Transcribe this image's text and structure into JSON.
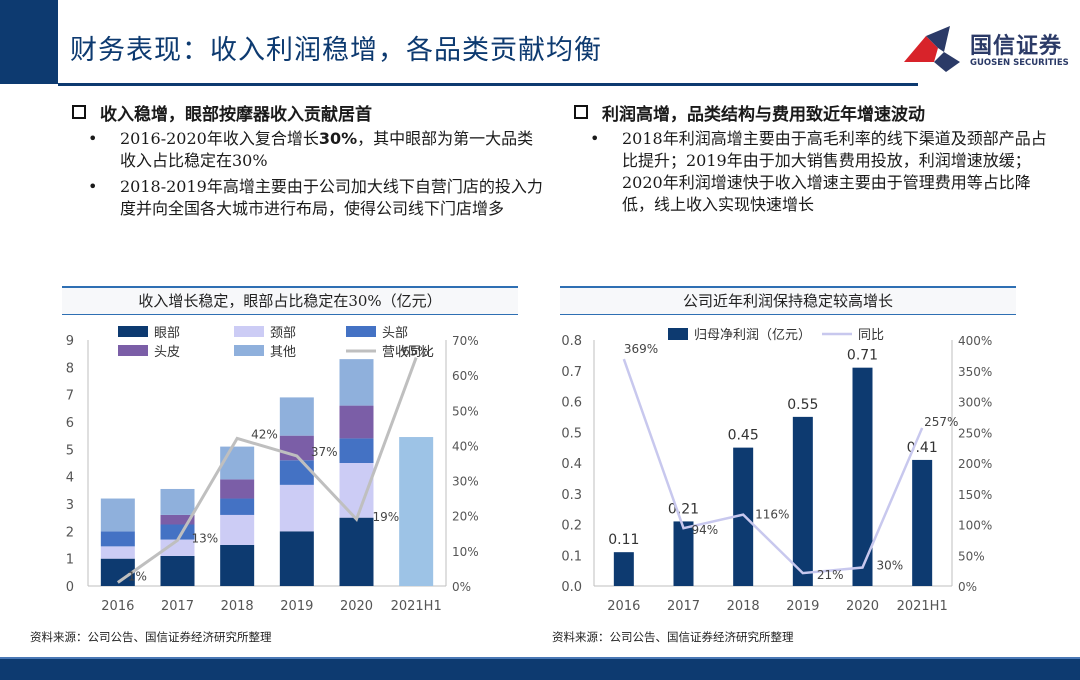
{
  "title": "财务表现：收入利润稳增，各品类贡献均衡",
  "logo": {
    "name": "国信证券",
    "en": "GUOSEN SECURITIES"
  },
  "left": {
    "heading": "收入稳增，眼部按摩器收入贡献居首",
    "bullets": [
      {
        "pre": "2016-2020年收入复合增长",
        "bold": "30%",
        "post": "，其中眼部为第一大品类收入占比稳定在30%"
      },
      {
        "pre": "2018-2019年高增主要由于公司加大线下自营门店的投入力度并向全国各大城市进行布局，使得公司线下门店增多",
        "bold": "",
        "post": ""
      }
    ]
  },
  "right": {
    "heading": "利润高增，品类结构与费用致近年增速波动",
    "bullets": [
      {
        "pre": "2018年利润高增主要由于高毛利率的线下渠道及颈部产品占比提升；2019年由于加大销售费用投放，利润增速放缓；2020年利润增速快于收入增速主要由于管理费用等占比降低，线上收入实现快速增长",
        "bold": "",
        "post": ""
      }
    ]
  },
  "chart1_title": "收入增长稳定，眼部占比稳定在30%（亿元）",
  "chart2_title": "公司近年利润保持稳定较高增长",
  "source_left": "资料来源：公司公告、国信证券经济研究所整理",
  "source_right": "资料来源：公司公告、国信证券经济研究所整理",
  "bullet_symbol": "•",
  "chart_data": [
    {
      "type": "bar",
      "stacked": true,
      "categories": [
        "2016",
        "2017",
        "2018",
        "2019",
        "2020",
        "2021H1"
      ],
      "series": [
        {
          "name": "眼部",
          "color": "#0d3a70",
          "values": [
            1.0,
            1.1,
            1.5,
            2.0,
            2.5,
            0
          ]
        },
        {
          "name": "颈部",
          "color": "#ccccf5",
          "values": [
            0.45,
            0.6,
            1.1,
            1.7,
            2.0,
            0
          ]
        },
        {
          "name": "头部",
          "color": "#4472c4",
          "values": [
            0.55,
            0.55,
            0.6,
            0.9,
            0.9,
            0
          ]
        },
        {
          "name": "头皮",
          "color": "#7b5ea7",
          "values": [
            0,
            0.35,
            0.7,
            0.9,
            1.2,
            0
          ]
        },
        {
          "name": "其他",
          "color": "#8fb0dc",
          "values": [
            1.2,
            0.95,
            1.2,
            1.4,
            1.7,
            5.45
          ]
        }
      ],
      "line_series": {
        "name": "营收同比",
        "color": "#bfbfbf",
        "values": [
          1,
          13,
          42,
          37,
          19,
          65
        ],
        "labels": [
          "1%",
          "13%",
          "42%",
          "37%",
          "19%",
          "65%"
        ]
      },
      "ylim": [
        0,
        9
      ],
      "yticks": [
        "0",
        "1",
        "2",
        "3",
        "4",
        "5",
        "6",
        "7",
        "8",
        "9"
      ],
      "y2lim": [
        0,
        70
      ],
      "y2ticks": [
        "0%",
        "10%",
        "20%",
        "30%",
        "40%",
        "50%",
        "60%",
        "70%"
      ],
      "legend": "top"
    },
    {
      "type": "bar",
      "categories": [
        "2016",
        "2017",
        "2018",
        "2019",
        "2020",
        "2021H1"
      ],
      "series": [
        {
          "name": "归母净利润（亿元）",
          "color": "#0d3a70",
          "values": [
            0.11,
            0.21,
            0.45,
            0.55,
            0.71,
            0.41
          ],
          "labels": [
            "0.11",
            "0.21",
            "0.45",
            "0.55",
            "0.71",
            "0.41"
          ]
        }
      ],
      "line_series": {
        "name": "同比",
        "color": "#c8c8ee",
        "values": [
          369,
          94,
          116,
          21,
          30,
          257
        ],
        "labels": [
          "369%",
          "94%",
          "116%",
          "21%",
          "30%",
          "257%"
        ]
      },
      "ylim": [
        0,
        0.8
      ],
      "yticks": [
        "0.0",
        "0.1",
        "0.2",
        "0.3",
        "0.4",
        "0.5",
        "0.6",
        "0.7",
        "0.8"
      ],
      "y2lim": [
        0,
        400
      ],
      "y2ticks": [
        "0%",
        "50%",
        "100%",
        "150%",
        "200%",
        "250%",
        "300%",
        "350%",
        "400%"
      ],
      "legend": "top"
    }
  ]
}
